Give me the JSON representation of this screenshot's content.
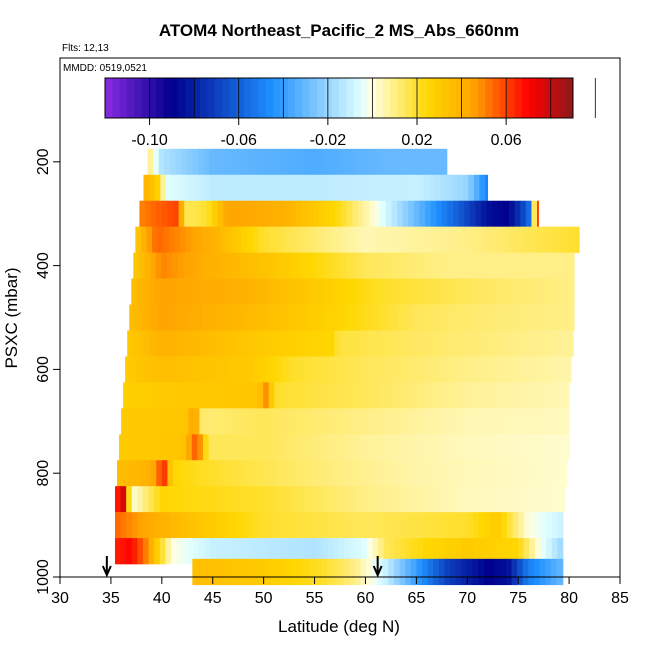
{
  "chart_data": {
    "type": "heatmap",
    "title": "ATOM4 Northeast_Pacific_2 MS_Abs_660nm",
    "flights_label": "Flts: 12,13",
    "mmdd_label": "MMDD: 0519,0521",
    "xlabel": "Latitude (deg N)",
    "ylabel": "PSXC (mbar)",
    "xlim": [
      30,
      85
    ],
    "ylim": [
      1000,
      0
    ],
    "x_ticks": [
      30,
      35,
      40,
      45,
      50,
      55,
      60,
      65,
      70,
      75,
      80,
      85
    ],
    "y_ticks": [
      200,
      400,
      600,
      800,
      1000
    ],
    "colorbar": {
      "range": [
        -0.12,
        0.09
      ],
      "tick_values": [
        -0.1,
        -0.06,
        -0.02,
        0.02,
        0.06
      ],
      "tick_labels": [
        "-0.10",
        "-0.06",
        "-0.02",
        "0.02",
        "0.06"
      ],
      "colors": [
        "#8a2be2",
        "#00008b",
        "#1e90ff",
        "#e0ffff",
        "#ffffe0",
        "#ffd700",
        "#ffa500",
        "#ff0000",
        "#8b1a1a"
      ],
      "color_stops": [
        -0.12,
        -0.09,
        -0.045,
        -0.005,
        0.0,
        0.025,
        0.045,
        0.07,
        0.09
      ]
    },
    "flight_markers": [
      {
        "lat": 34.6,
        "label": "start"
      },
      {
        "lat": 61.2,
        "label": "end"
      }
    ],
    "rows": [
      {
        "p": 200,
        "start": 38.6,
        "end": 68.0,
        "knots": [
          [
            38.6,
            0.015
          ],
          [
            39.2,
            0.0
          ],
          [
            40.0,
            -0.015
          ],
          [
            45,
            -0.03
          ],
          [
            55,
            -0.035
          ],
          [
            62,
            -0.03
          ],
          [
            68,
            -0.03
          ]
        ]
      },
      {
        "p": 250,
        "start": 38.2,
        "end": 72.0,
        "knots": [
          [
            38.2,
            0.04
          ],
          [
            39.5,
            0.03
          ],
          [
            40.5,
            -0.005
          ],
          [
            45,
            -0.012
          ],
          [
            55,
            -0.012
          ],
          [
            65,
            -0.01
          ],
          [
            70,
            -0.02
          ],
          [
            72,
            -0.05
          ]
        ]
      },
      {
        "p": 300,
        "start": 37.8,
        "end": 77.0,
        "knots": [
          [
            37.8,
            0.05
          ],
          [
            39.5,
            0.055
          ],
          [
            41.5,
            0.06
          ],
          [
            42.5,
            0.015
          ],
          [
            44.5,
            0.02
          ],
          [
            46.5,
            0.045
          ],
          [
            52,
            0.04
          ],
          [
            57,
            0.025
          ],
          [
            61,
            0.0
          ],
          [
            65,
            -0.03
          ],
          [
            69,
            -0.06
          ],
          [
            72,
            -0.085
          ],
          [
            74,
            -0.09
          ],
          [
            76,
            -0.06
          ],
          [
            77,
            0.07
          ]
        ]
      },
      {
        "p": 350,
        "start": 37.4,
        "end": 81.0,
        "knots": [
          [
            37.4,
            0.03
          ],
          [
            39.5,
            0.055
          ],
          [
            45,
            0.04
          ],
          [
            50,
            0.02
          ],
          [
            60,
            0.005
          ],
          [
            70,
            0.01
          ],
          [
            81,
            0.02
          ]
        ]
      },
      {
        "p": 400,
        "start": 37.2,
        "end": 80.5,
        "knots": [
          [
            37.2,
            0.03
          ],
          [
            40,
            0.05
          ],
          [
            45,
            0.04
          ],
          [
            52,
            0.03
          ],
          [
            60,
            0.015
          ],
          [
            68,
            0.01
          ],
          [
            80.5,
            0.01
          ]
        ]
      },
      {
        "p": 450,
        "start": 37.0,
        "end": 80.5,
        "knots": [
          [
            37.0,
            0.035
          ],
          [
            40,
            0.045
          ],
          [
            48,
            0.04
          ],
          [
            55,
            0.03
          ],
          [
            62,
            0.02
          ],
          [
            70,
            0.015
          ],
          [
            80.5,
            0.01
          ]
        ]
      },
      {
        "p": 500,
        "start": 36.8,
        "end": 80.5,
        "knots": [
          [
            36.8,
            0.035
          ],
          [
            40,
            0.045
          ],
          [
            50,
            0.035
          ],
          [
            58,
            0.025
          ],
          [
            65,
            0.015
          ],
          [
            72,
            0.012
          ],
          [
            80.5,
            0.01
          ]
        ]
      },
      {
        "p": 550,
        "start": 36.6,
        "end": 80.4,
        "knots": [
          [
            36.6,
            0.03
          ],
          [
            40,
            0.04
          ],
          [
            50,
            0.03
          ],
          [
            57,
            0.025
          ],
          [
            57.3,
            0.018
          ],
          [
            65,
            0.014
          ],
          [
            80.4,
            0.008
          ]
        ]
      },
      {
        "p": 600,
        "start": 36.4,
        "end": 80.2,
        "knots": [
          [
            36.4,
            0.03
          ],
          [
            40,
            0.035
          ],
          [
            49,
            0.03
          ],
          [
            53,
            0.02
          ],
          [
            60,
            0.015
          ],
          [
            70,
            0.01
          ],
          [
            80.2,
            0.006
          ]
        ]
      },
      {
        "p": 650,
        "start": 36.2,
        "end": 80.0,
        "knots": [
          [
            36.2,
            0.028
          ],
          [
            40,
            0.03
          ],
          [
            49.5,
            0.032
          ],
          [
            50.3,
            0.05
          ],
          [
            51,
            0.02
          ],
          [
            60,
            0.015
          ],
          [
            70,
            0.008
          ],
          [
            80,
            0.005
          ]
        ]
      },
      {
        "p": 700,
        "start": 36.0,
        "end": 80.0,
        "knots": [
          [
            36.0,
            0.03
          ],
          [
            42.5,
            0.032
          ],
          [
            43.2,
            0.05
          ],
          [
            44,
            0.012
          ],
          [
            50,
            0.015
          ],
          [
            60,
            0.01
          ],
          [
            70,
            0.005
          ],
          [
            80,
            0.004
          ]
        ]
      },
      {
        "p": 750,
        "start": 35.8,
        "end": 80.0,
        "knots": [
          [
            35.8,
            0.03
          ],
          [
            42,
            0.032
          ],
          [
            43.5,
            0.06
          ],
          [
            44.5,
            0.015
          ],
          [
            50,
            0.015
          ],
          [
            60,
            0.008
          ],
          [
            70,
            0.004
          ],
          [
            80,
            0.002
          ]
        ]
      },
      {
        "p": 800,
        "start": 35.6,
        "end": 79.8,
        "knots": [
          [
            35.6,
            0.035
          ],
          [
            39,
            0.04
          ],
          [
            40.2,
            0.065
          ],
          [
            41,
            0.025
          ],
          [
            45,
            0.02
          ],
          [
            55,
            0.012
          ],
          [
            65,
            0.006
          ],
          [
            79.8,
            0.002
          ]
        ]
      },
      {
        "p": 850,
        "start": 35.4,
        "end": 79.6,
        "knots": [
          [
            35.4,
            0.06
          ],
          [
            36.2,
            0.08
          ],
          [
            37,
            0.0
          ],
          [
            40,
            0.025
          ],
          [
            50,
            0.02
          ],
          [
            60,
            0.01
          ],
          [
            70,
            0.004
          ],
          [
            79.6,
            0.002
          ]
        ]
      },
      {
        "p": 900,
        "start": 35.4,
        "end": 79.4,
        "knots": [
          [
            35.4,
            0.055
          ],
          [
            38,
            0.045
          ],
          [
            42,
            0.035
          ],
          [
            50,
            0.02
          ],
          [
            60,
            0.015
          ],
          [
            70,
            0.02
          ],
          [
            73,
            0.03
          ],
          [
            76,
            0.0
          ],
          [
            79.4,
            -0.01
          ]
        ]
      },
      {
        "p": 950,
        "start": 35.4,
        "end": 79.4,
        "knots": [
          [
            35.4,
            0.065
          ],
          [
            37,
            0.07
          ],
          [
            38.5,
            0.05
          ],
          [
            41,
            0.0
          ],
          [
            45,
            -0.01
          ],
          [
            55,
            -0.015
          ],
          [
            60,
            -0.005
          ],
          [
            62,
            0.015
          ],
          [
            66,
            0.025
          ],
          [
            70,
            0.03
          ],
          [
            75,
            0.025
          ],
          [
            77,
            0.0
          ],
          [
            79.4,
            -0.02
          ]
        ]
      },
      {
        "p": 990,
        "start": 43.0,
        "end": 79.4,
        "knots": [
          [
            43,
            0.035
          ],
          [
            50,
            0.03
          ],
          [
            56,
            0.02
          ],
          [
            59,
            0.01
          ],
          [
            62,
            -0.01
          ],
          [
            65,
            -0.04
          ],
          [
            68,
            -0.07
          ],
          [
            72,
            -0.09
          ],
          [
            74,
            -0.085
          ],
          [
            76,
            -0.05
          ],
          [
            79.4,
            -0.03
          ]
        ]
      }
    ]
  }
}
